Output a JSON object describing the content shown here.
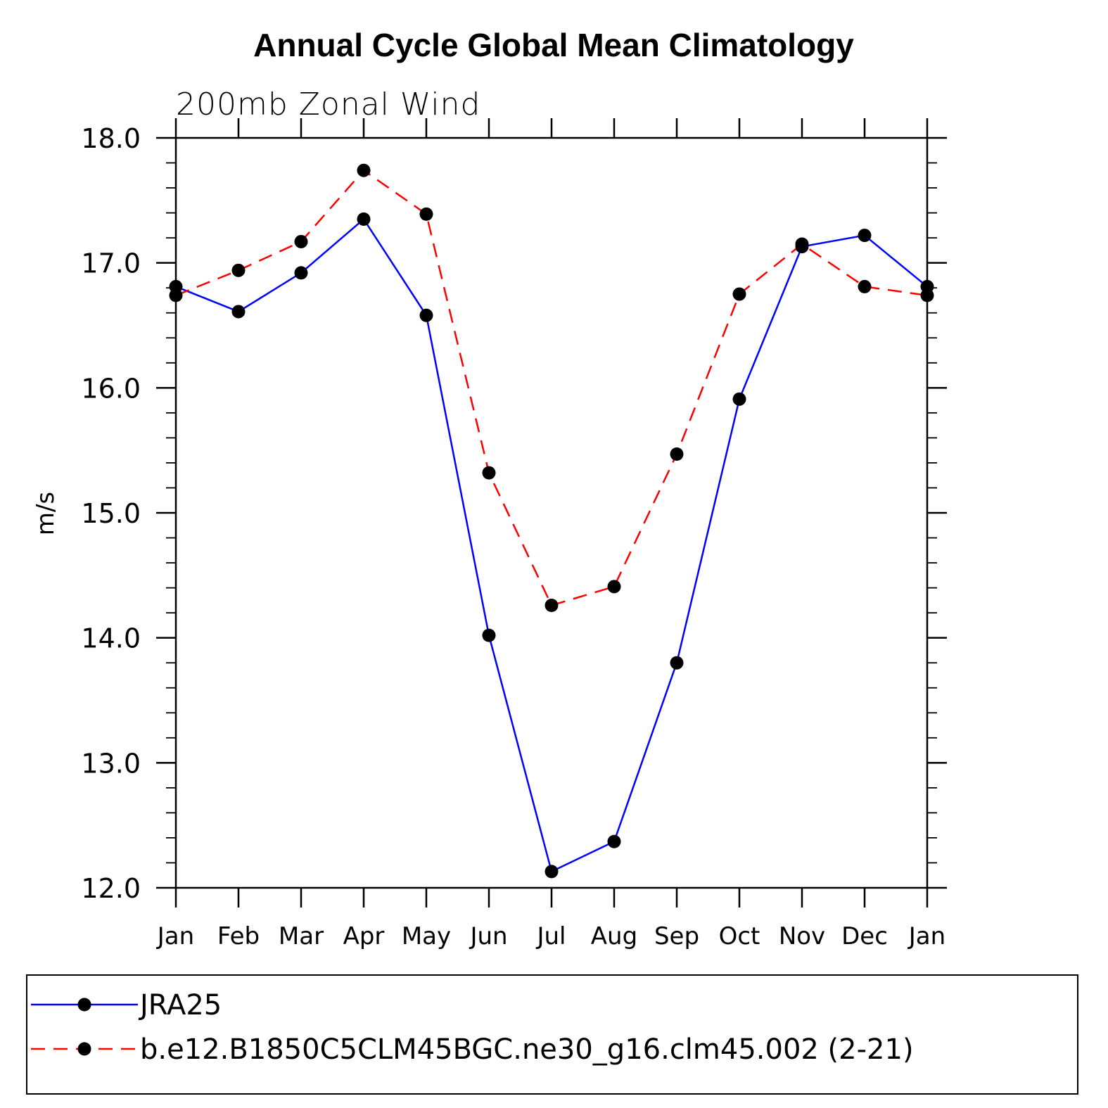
{
  "chart_data": {
    "type": "line",
    "title": "Annual Cycle Global Mean Climatology",
    "subtitle": "200mb Zonal Wind",
    "ylabel": "m/s",
    "xlabel": "",
    "categories": [
      "Jan",
      "Feb",
      "Mar",
      "Apr",
      "May",
      "Jun",
      "Jul",
      "Aug",
      "Sep",
      "Oct",
      "Nov",
      "Dec",
      "Jan"
    ],
    "ylim": [
      12.0,
      18.0
    ],
    "yticks": [
      12.0,
      13.0,
      14.0,
      15.0,
      16.0,
      17.0,
      18.0
    ],
    "ytick_labels": [
      "12.0",
      "13.0",
      "14.0",
      "15.0",
      "16.0",
      "17.0",
      "18.0"
    ],
    "y_minor_step": 0.2,
    "grid": false,
    "legend_position": "bottom",
    "series": [
      {
        "name": "JRA25",
        "color": "#0000ff",
        "line_style": "solid",
        "marker": "filled-circle",
        "marker_color": "#000000",
        "values": [
          16.81,
          16.61,
          16.92,
          17.35,
          16.58,
          14.02,
          12.13,
          12.37,
          13.8,
          15.91,
          17.13,
          17.22,
          16.81
        ]
      },
      {
        "name": "b.e12.B1850C5CLM45BGC.ne30_g16.clm45.002 (2-21)",
        "color": "#ff0000",
        "line_style": "dashed",
        "marker": "filled-circle",
        "marker_color": "#000000",
        "values": [
          16.74,
          16.94,
          17.17,
          17.74,
          17.39,
          15.32,
          14.26,
          14.41,
          15.47,
          16.75,
          17.15,
          16.81,
          16.74
        ]
      }
    ]
  }
}
